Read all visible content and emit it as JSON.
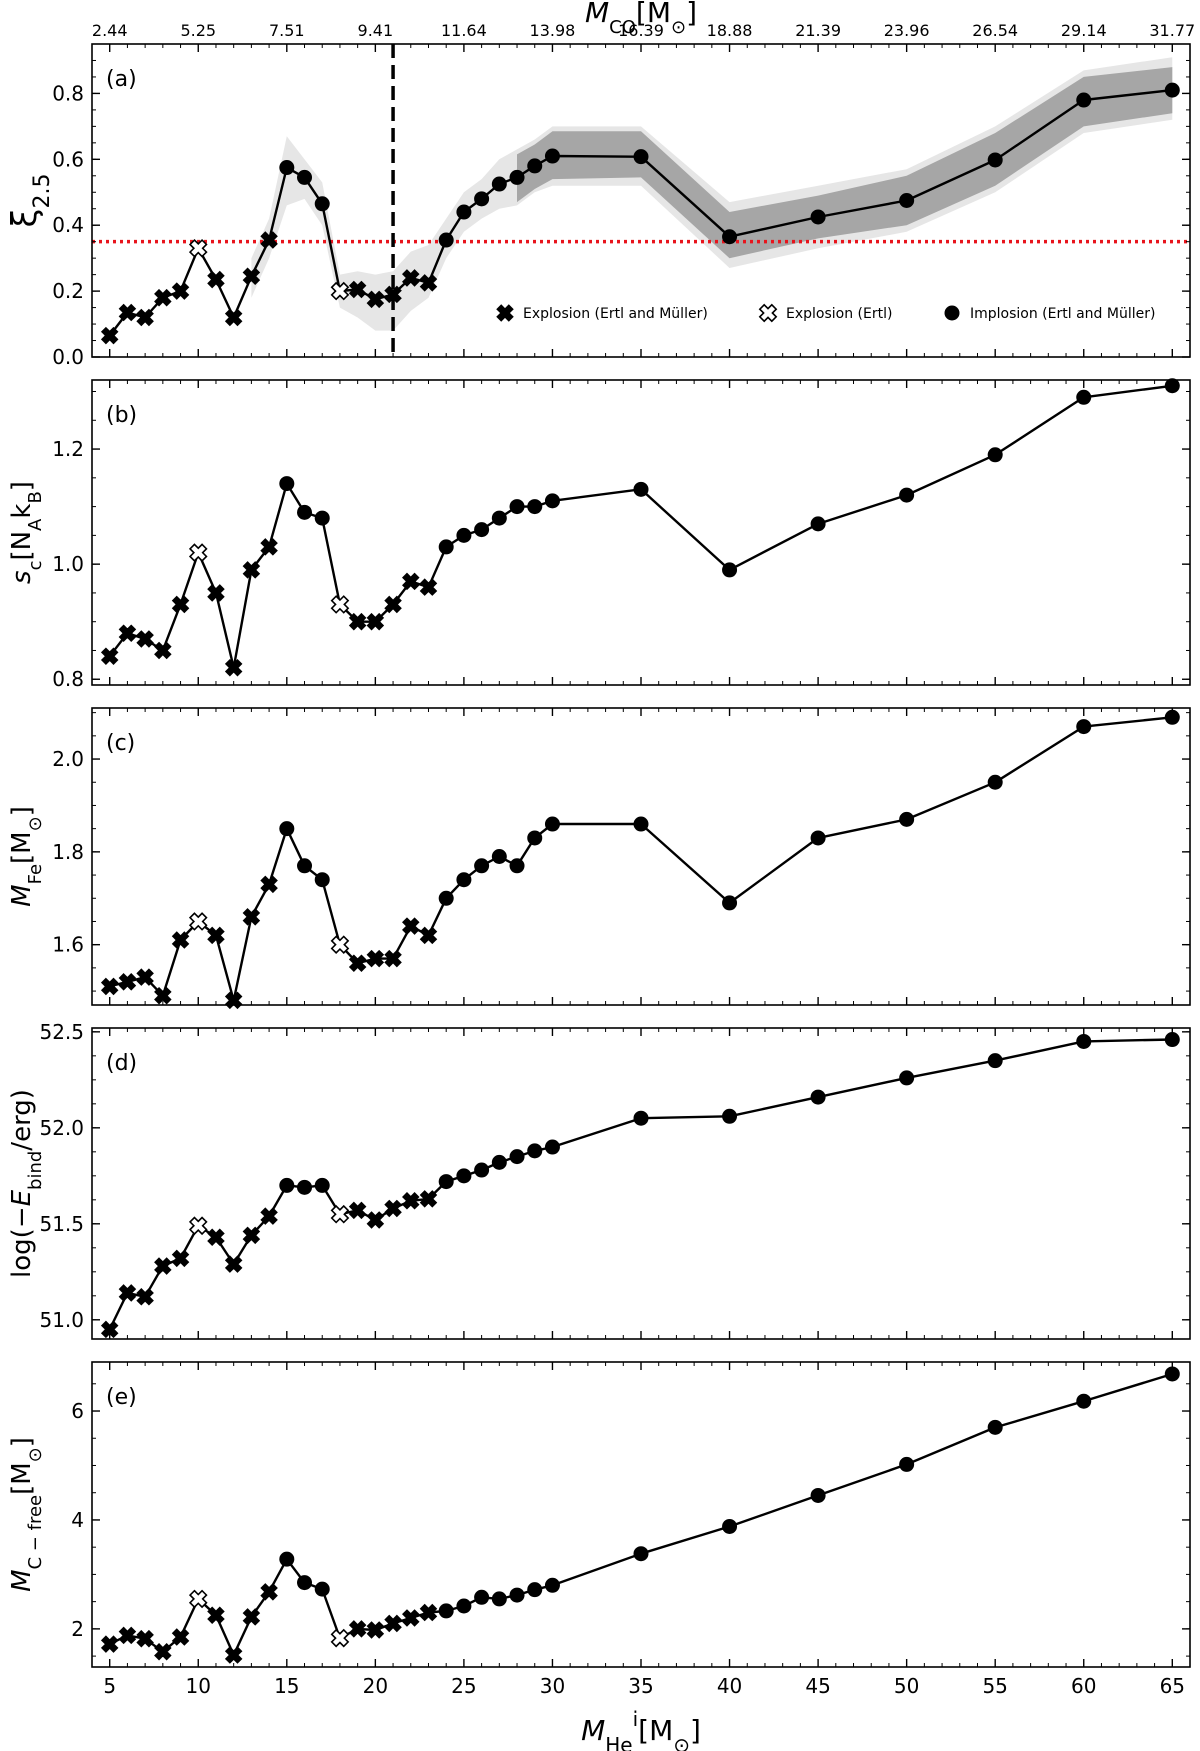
{
  "chart_data": {
    "type": "line",
    "x_axis": {
      "label": "M_He^i [M_sun]",
      "ticks": [
        5,
        10,
        15,
        20,
        25,
        30,
        35,
        40,
        45,
        50,
        55,
        60,
        65
      ],
      "range": [
        4,
        66
      ]
    },
    "top_axis": {
      "label": "M_CO [M_sun]",
      "tick_positions": [
        5,
        10,
        15,
        20,
        25,
        30,
        35,
        40,
        45,
        50,
        55,
        60,
        65
      ],
      "tick_labels": [
        "2.44",
        "5.25",
        "7.51",
        "9.41",
        "11.64",
        "13.98",
        "16.39",
        "18.88",
        "21.39",
        "23.96",
        "26.54",
        "29.14",
        "31.77"
      ]
    },
    "x": [
      5,
      6,
      7,
      8,
      9,
      10,
      11,
      12,
      13,
      14,
      15,
      16,
      17,
      18,
      19,
      20,
      21,
      22,
      23,
      24,
      25,
      26,
      27,
      28,
      29,
      30,
      35,
      40,
      45,
      50,
      55,
      60,
      65
    ],
    "marker_types": [
      "explosion_both",
      "explosion_both",
      "explosion_both",
      "explosion_both",
      "explosion_both",
      "explosion_ertl",
      "explosion_both",
      "explosion_both",
      "explosion_both",
      "explosion_both",
      "implosion",
      "implosion",
      "implosion",
      "explosion_ertl",
      "explosion_both",
      "explosion_both",
      "explosion_both",
      "explosion_both",
      "explosion_both",
      "implosion",
      "implosion",
      "implosion",
      "implosion",
      "implosion",
      "implosion",
      "implosion",
      "implosion",
      "implosion",
      "implosion",
      "implosion",
      "implosion",
      "implosion",
      "implosion"
    ],
    "legend": {
      "placement": "lower-right of panel (a)",
      "entries": [
        {
          "marker": "explosion_both",
          "label": "Explosion (Ertl and Müller)"
        },
        {
          "marker": "explosion_ertl",
          "label": "Explosion (Ertl)"
        },
        {
          "marker": "implosion",
          "label": "Implosion (Ertl and Müller)"
        }
      ]
    },
    "panels": [
      {
        "id": "a",
        "panel_label": "(a)",
        "ylabel": "ξ_2.5",
        "ylim": [
          0,
          0.95
        ],
        "yticks": [
          0.0,
          0.2,
          0.4,
          0.6,
          0.8
        ],
        "ytick_labels": [
          "0.0",
          "0.2",
          "0.4",
          "0.6",
          "0.8"
        ],
        "y": [
          0.065,
          0.135,
          0.12,
          0.18,
          0.2,
          0.33,
          0.235,
          0.12,
          0.245,
          0.355,
          0.575,
          0.545,
          0.465,
          0.2,
          0.205,
          0.175,
          0.19,
          0.24,
          0.225,
          0.355,
          0.44,
          0.48,
          0.525,
          0.545,
          0.58,
          0.61,
          0.608,
          0.365,
          0.425,
          0.475,
          0.598,
          0.78,
          0.81
        ],
        "hline": {
          "y": 0.35,
          "color": "#e8141c",
          "style": "dotted"
        },
        "vline": {
          "x": 21,
          "color": "#000000",
          "style": "dashed"
        },
        "band_light": {
          "color": "#e6e6e6",
          "x": [
            13,
            14,
            15,
            16,
            17,
            18,
            19,
            20,
            21,
            22,
            23,
            24,
            25,
            26,
            27,
            28,
            29,
            30,
            35,
            40,
            45,
            50,
            55,
            60,
            65
          ],
          "lower": [
            0.18,
            0.3,
            0.46,
            0.48,
            0.4,
            0.15,
            0.12,
            0.08,
            0.08,
            0.14,
            0.18,
            0.3,
            0.38,
            0.42,
            0.45,
            0.46,
            0.5,
            0.52,
            0.52,
            0.27,
            0.33,
            0.38,
            0.5,
            0.68,
            0.72
          ],
          "upper": [
            0.3,
            0.42,
            0.67,
            0.6,
            0.53,
            0.25,
            0.26,
            0.25,
            0.26,
            0.32,
            0.34,
            0.42,
            0.5,
            0.54,
            0.6,
            0.63,
            0.66,
            0.7,
            0.7,
            0.47,
            0.52,
            0.57,
            0.7,
            0.87,
            0.91
          ]
        },
        "band_dark": {
          "color": "#a6a6a6",
          "x": [
            28,
            29,
            30,
            35,
            40,
            45,
            50,
            55,
            60,
            65
          ],
          "lower": [
            0.47,
            0.51,
            0.54,
            0.545,
            0.3,
            0.36,
            0.4,
            0.52,
            0.7,
            0.74
          ],
          "upper": [
            0.615,
            0.645,
            0.685,
            0.685,
            0.44,
            0.49,
            0.55,
            0.68,
            0.85,
            0.88
          ]
        }
      },
      {
        "id": "b",
        "panel_label": "(b)",
        "ylabel": "s_c [N_A k_B]",
        "ylim": [
          0.79,
          1.32
        ],
        "yticks": [
          0.8,
          1.0,
          1.2
        ],
        "ytick_labels": [
          "0.8",
          "1.0",
          "1.2"
        ],
        "y": [
          0.84,
          0.88,
          0.87,
          0.85,
          0.93,
          1.02,
          0.95,
          0.82,
          0.99,
          1.03,
          1.14,
          1.09,
          1.08,
          0.93,
          0.9,
          0.9,
          0.93,
          0.97,
          0.96,
          1.03,
          1.05,
          1.06,
          1.08,
          1.1,
          1.1,
          1.11,
          1.13,
          0.99,
          1.07,
          1.12,
          1.19,
          1.29,
          1.31
        ]
      },
      {
        "id": "c",
        "panel_label": "(c)",
        "ylabel": "M_Fe [M_sun]",
        "ylim": [
          1.47,
          2.11
        ],
        "yticks": [
          1.6,
          1.8,
          2.0
        ],
        "ytick_labels": [
          "1.6",
          "1.8",
          "2.0"
        ],
        "y": [
          1.51,
          1.52,
          1.53,
          1.49,
          1.61,
          1.65,
          1.62,
          1.48,
          1.66,
          1.73,
          1.85,
          1.77,
          1.74,
          1.6,
          1.56,
          1.57,
          1.57,
          1.64,
          1.62,
          1.7,
          1.74,
          1.77,
          1.79,
          1.77,
          1.83,
          1.86,
          1.86,
          1.69,
          1.83,
          1.87,
          1.95,
          2.07,
          2.09
        ]
      },
      {
        "id": "d",
        "panel_label": "(d)",
        "ylabel": "log(−E_bind/erg)",
        "ylim": [
          50.9,
          52.52
        ],
        "yticks": [
          51.0,
          51.5,
          52.0,
          52.5
        ],
        "ytick_labels": [
          "51.0",
          "51.5",
          "52.0",
          "52.5"
        ],
        "y": [
          50.95,
          51.14,
          51.12,
          51.28,
          51.32,
          51.49,
          51.43,
          51.29,
          51.44,
          51.54,
          51.7,
          51.69,
          51.7,
          51.55,
          51.57,
          51.52,
          51.58,
          51.62,
          51.63,
          51.72,
          51.75,
          51.78,
          51.82,
          51.85,
          51.88,
          51.9,
          52.05,
          52.06,
          52.16,
          52.26,
          52.35,
          52.45,
          52.46
        ]
      },
      {
        "id": "e",
        "panel_label": "(e)",
        "ylabel": "M_C−free [M_sun]",
        "ylim": [
          1.3,
          6.9
        ],
        "yticks": [
          2,
          4,
          6
        ],
        "ytick_labels": [
          "2",
          "4",
          "6"
        ],
        "y": [
          1.72,
          1.88,
          1.82,
          1.58,
          1.85,
          2.55,
          2.25,
          1.52,
          2.22,
          2.68,
          3.28,
          2.85,
          2.73,
          1.83,
          2.0,
          1.98,
          2.1,
          2.2,
          2.3,
          2.33,
          2.42,
          2.58,
          2.55,
          2.62,
          2.72,
          2.8,
          3.38,
          3.88,
          4.45,
          5.02,
          5.7,
          6.18,
          6.68
        ]
      }
    ]
  }
}
